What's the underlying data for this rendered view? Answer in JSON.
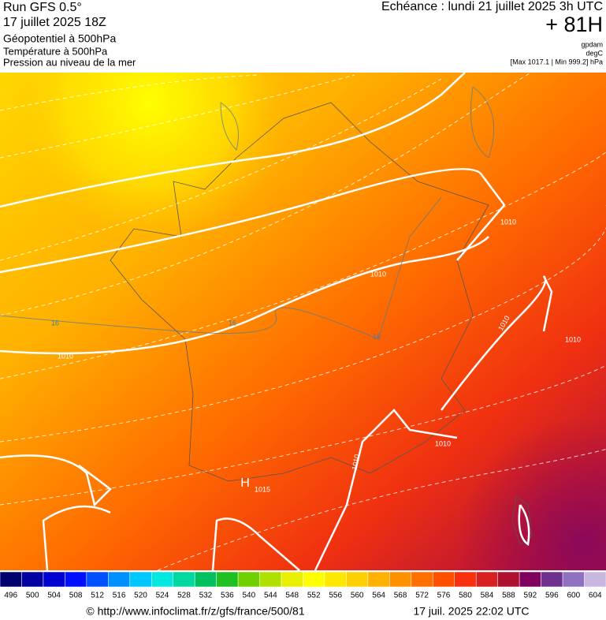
{
  "header": {
    "run": "Run GFS 0.5°",
    "date": "17 juillet 2025 18Z",
    "field": "Géopotentiel à 500hPa",
    "sub1": "Température à 500hPa",
    "sub2": "Pression au niveau de la mer",
    "echeance": "Echéance : lundi 21 juillet 2025 3h UTC",
    "lead": "+ 81H",
    "unit1": "gpdam",
    "unit2": "degC",
    "range": "[Max 1017.1 | Min 999.2] hPa"
  },
  "map_labels": [
    "1010",
    "1010",
    "1010",
    "1010",
    "1010",
    "1010",
    "1010",
    "1015",
    "H",
    "16",
    "16",
    "16"
  ],
  "legend": {
    "values": [
      496,
      500,
      504,
      508,
      512,
      516,
      520,
      524,
      528,
      532,
      536,
      540,
      544,
      548,
      552,
      556,
      560,
      564,
      568,
      572,
      576,
      580,
      584,
      588,
      592,
      596,
      600,
      604
    ],
    "colors": [
      "#00006e",
      "#0000a0",
      "#0000d0",
      "#0010ff",
      "#0050ff",
      "#0090ff",
      "#00c8ff",
      "#00e8e0",
      "#00d8a0",
      "#00c060",
      "#20c020",
      "#70d000",
      "#b0e000",
      "#e8f000",
      "#ffff00",
      "#ffe800",
      "#ffd000",
      "#ffb000",
      "#ff9000",
      "#ff7000",
      "#ff5000",
      "#f83010",
      "#d82020",
      "#b01030",
      "#800060",
      "#703090",
      "#9070c0",
      "#c8b8e0"
    ]
  },
  "footer": {
    "left": "© http://www.infoclimat.fr/z/gfs/france/500/81",
    "right": "17 juil. 2025 22:02 UTC"
  }
}
